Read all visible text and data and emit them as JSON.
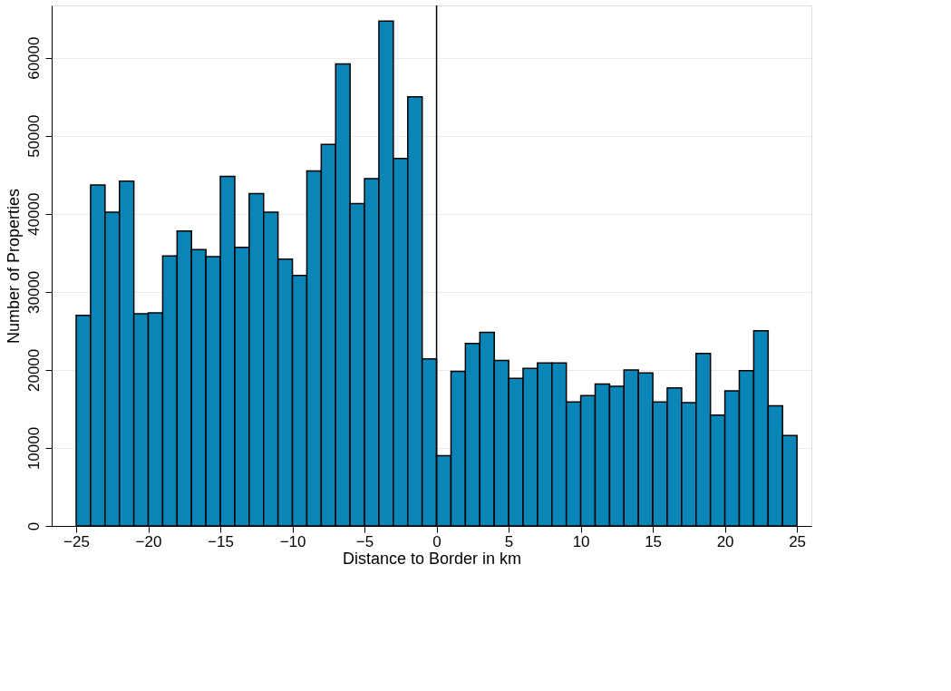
{
  "chart_data": {
    "type": "histogram",
    "xlabel": "Distance to Border in km",
    "ylabel": "Number of Properties",
    "bins": [
      -25,
      -24,
      -23,
      -22,
      -21,
      -20,
      -19,
      -18,
      -17,
      -16,
      -15,
      -14,
      -13,
      -12,
      -11,
      -10,
      -9,
      -8,
      -7,
      -6,
      -5,
      -4,
      -3,
      -2,
      -1,
      0,
      1,
      2,
      3,
      4,
      5,
      6,
      7,
      8,
      9,
      10,
      11,
      12,
      13,
      14,
      15,
      16,
      17,
      18,
      19,
      20,
      21,
      22,
      23,
      24,
      25
    ],
    "values": [
      27000,
      43700,
      40200,
      44200,
      27200,
      27300,
      34600,
      37800,
      35400,
      34500,
      44800,
      35700,
      42600,
      40200,
      34200,
      32100,
      45500,
      48900,
      59200,
      41300,
      44500,
      64700,
      47100,
      55000,
      21400,
      9000,
      19800,
      23400,
      24800,
      21200,
      18900,
      20200,
      20900,
      20900,
      15900,
      16700,
      18200,
      17900,
      20000,
      19600,
      15900,
      17700,
      15800,
      22100,
      14200,
      17300,
      19900,
      25000,
      15400,
      11600
    ],
    "color": "#0a85b8",
    "xlim": [
      -26.7,
      26
    ],
    "ylim": [
      0,
      66700
    ],
    "xticks": [
      -25,
      -20,
      -15,
      -10,
      -5,
      0,
      5,
      10,
      15,
      20,
      25
    ],
    "yticks": [
      0,
      10000,
      20000,
      30000,
      40000,
      50000,
      60000
    ],
    "ref_lines": [
      {
        "axis": "x",
        "value": 0,
        "color": "#000000"
      }
    ],
    "grid": "y"
  }
}
